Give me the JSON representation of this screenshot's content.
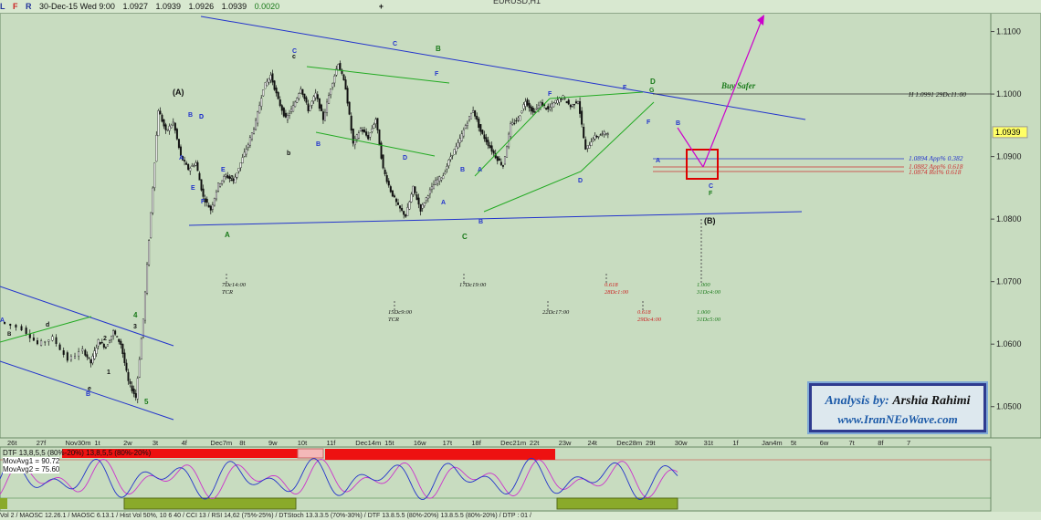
{
  "window": {
    "title": "EURUSD,H1",
    "toolbar_buttons": [
      "L",
      "F",
      "R"
    ],
    "ohlc_text": "30-Dec-15 Wed 9:00",
    "open": "1.0927",
    "high": "1.0939",
    "low": "1.0926",
    "close": "1.0939",
    "change": "0.0020",
    "add_label": "+"
  },
  "colors": {
    "background": "#c8dcc0",
    "trendline": "#2233cc",
    "channel": "#22aa22",
    "target": "#cc00cc",
    "box": "#dd0000",
    "price_label_bg": "#ffff66"
  },
  "chart_data": {
    "type": "candlestick",
    "title": "EURUSD,H1",
    "ylim": [
      1.045,
      1.113
    ],
    "yticks": [
      "1.1100",
      "1.1000",
      "1.0939",
      "1.0900",
      "1.0800",
      "1.0700",
      "1.0600",
      "1.0500"
    ],
    "current_price": "1.0939",
    "xticks": [
      "26t",
      "27f",
      "Nov30m",
      "1t",
      "2w",
      "3t",
      "4f",
      "Dec7m",
      "8t",
      "9w",
      "10t",
      "11f",
      "Dec14m",
      "15t",
      "16w",
      "17t",
      "18f",
      "Dec21m",
      "22t",
      "23w",
      "24t",
      "Dec28m",
      "29t",
      "30w",
      "31t",
      "1f",
      "Jan4m",
      "5t",
      "6w",
      "7t",
      "8f",
      "7"
    ],
    "price_path": [
      [
        0,
        1.0635
      ],
      [
        6,
        1.0625
      ],
      [
        10,
        1.06
      ],
      [
        14,
        1.061
      ],
      [
        18,
        1.0575
      ],
      [
        22,
        1.059
      ],
      [
        24,
        1.057
      ],
      [
        26,
        1.0605
      ],
      [
        28,
        1.0595
      ],
      [
        30,
        1.062
      ],
      [
        32,
        1.06
      ],
      [
        34,
        1.054
      ],
      [
        36,
        1.0515
      ],
      [
        38,
        1.064
      ],
      [
        40,
        1.081
      ],
      [
        42,
        1.0975
      ],
      [
        44,
        1.094
      ],
      [
        46,
        1.0955
      ],
      [
        48,
        1.09
      ],
      [
        50,
        1.088
      ],
      [
        52,
        1.089
      ],
      [
        54,
        1.0835
      ],
      [
        56,
        1.0815
      ],
      [
        58,
        1.0855
      ],
      [
        60,
        1.087
      ],
      [
        62,
        1.086
      ],
      [
        64,
        1.089
      ],
      [
        66,
        1.092
      ],
      [
        68,
        1.0955
      ],
      [
        70,
        1.101
      ],
      [
        72,
        1.103
      ],
      [
        74,
        1.099
      ],
      [
        76,
        1.096
      ],
      [
        78,
        1.098
      ],
      [
        80,
        1.101
      ],
      [
        82,
        1.0975
      ],
      [
        84,
        1.1
      ],
      [
        86,
        1.096
      ],
      [
        88,
        1.101
      ],
      [
        90,
        1.105
      ],
      [
        92,
        1.101
      ],
      [
        94,
        1.092
      ],
      [
        96,
        1.0945
      ],
      [
        98,
        1.093
      ],
      [
        100,
        1.096
      ],
      [
        102,
        1.088
      ],
      [
        104,
        1.0845
      ],
      [
        106,
        1.082
      ],
      [
        108,
        1.0805
      ],
      [
        110,
        1.085
      ],
      [
        112,
        1.0815
      ],
      [
        114,
        1.084
      ],
      [
        116,
        1.086
      ],
      [
        118,
        1.087
      ],
      [
        120,
        1.09
      ],
      [
        122,
        1.092
      ],
      [
        124,
        1.095
      ],
      [
        126,
        1.0975
      ],
      [
        128,
        1.094
      ],
      [
        130,
        1.092
      ],
      [
        132,
        1.09
      ],
      [
        134,
        1.0885
      ],
      [
        136,
        1.095
      ],
      [
        138,
        1.096
      ],
      [
        140,
        1.099
      ],
      [
        142,
        1.097
      ],
      [
        144,
        1.0985
      ],
      [
        146,
        1.0975
      ],
      [
        148,
        1.0988
      ],
      [
        150,
        1.0995
      ],
      [
        152,
        1.098
      ],
      [
        154,
        1.099
      ],
      [
        156,
        1.091
      ],
      [
        158,
        1.093
      ],
      [
        160,
        1.0935
      ],
      [
        162,
        1.0939
      ]
    ],
    "x_max": 240,
    "annotations": {
      "wave_labels": [
        "(A)",
        "(B)",
        "A",
        "B",
        "C",
        "D",
        "E",
        "F",
        "G",
        "a",
        "b",
        "c",
        "d",
        "e",
        "1",
        "2",
        "3",
        "4",
        "5"
      ],
      "time_labels": [
        "7Dc14:00",
        "TCR",
        "15Dc9:00",
        "TCR",
        "17Dc19:00",
        "22Dc17:00",
        "0.618",
        "28Dc1:00",
        "0.618",
        "29Dc4:00",
        "1.000",
        "31Dc4:00",
        "1.000",
        "31Dc5:00"
      ],
      "level_labels": [
        "H 1.0991 29Dc11:00",
        "1.0894 App% 0.382",
        "1.0882 App% 0.618",
        "1.0874 Ret% 0.618"
      ],
      "buy_text": "Buy Safer"
    }
  },
  "oscillator": {
    "legend": [
      "DTF 13,8,5,5 (80%-20%) 13,8,5,5 (80%-20%)",
      "MovAvg1 = 90.72",
      "MovAvg2 = 75.60"
    ],
    "upper_band": 80,
    "lower_band": 20,
    "mov_avg1": 90.72,
    "mov_avg2": 75.6
  },
  "bottom_bar": "Vol 2 / MAOSC 12.26.1 / MAOSC 6.13.1 / Hist Vol 50%, 10 6 40 / CCI 13 / RSI 14,62 (75%-25%) / DTStoch 13.3.3.5 (70%-30%) / DTF 13.8.5.5 (80%-20%) 13.8.5.5 (80%-20%) / DTP : 01 /",
  "credit": {
    "line1_prefix": "Analysis by:",
    "line1_name": "Arshia Rahimi",
    "line2": "www.IranNEoWave.com"
  }
}
